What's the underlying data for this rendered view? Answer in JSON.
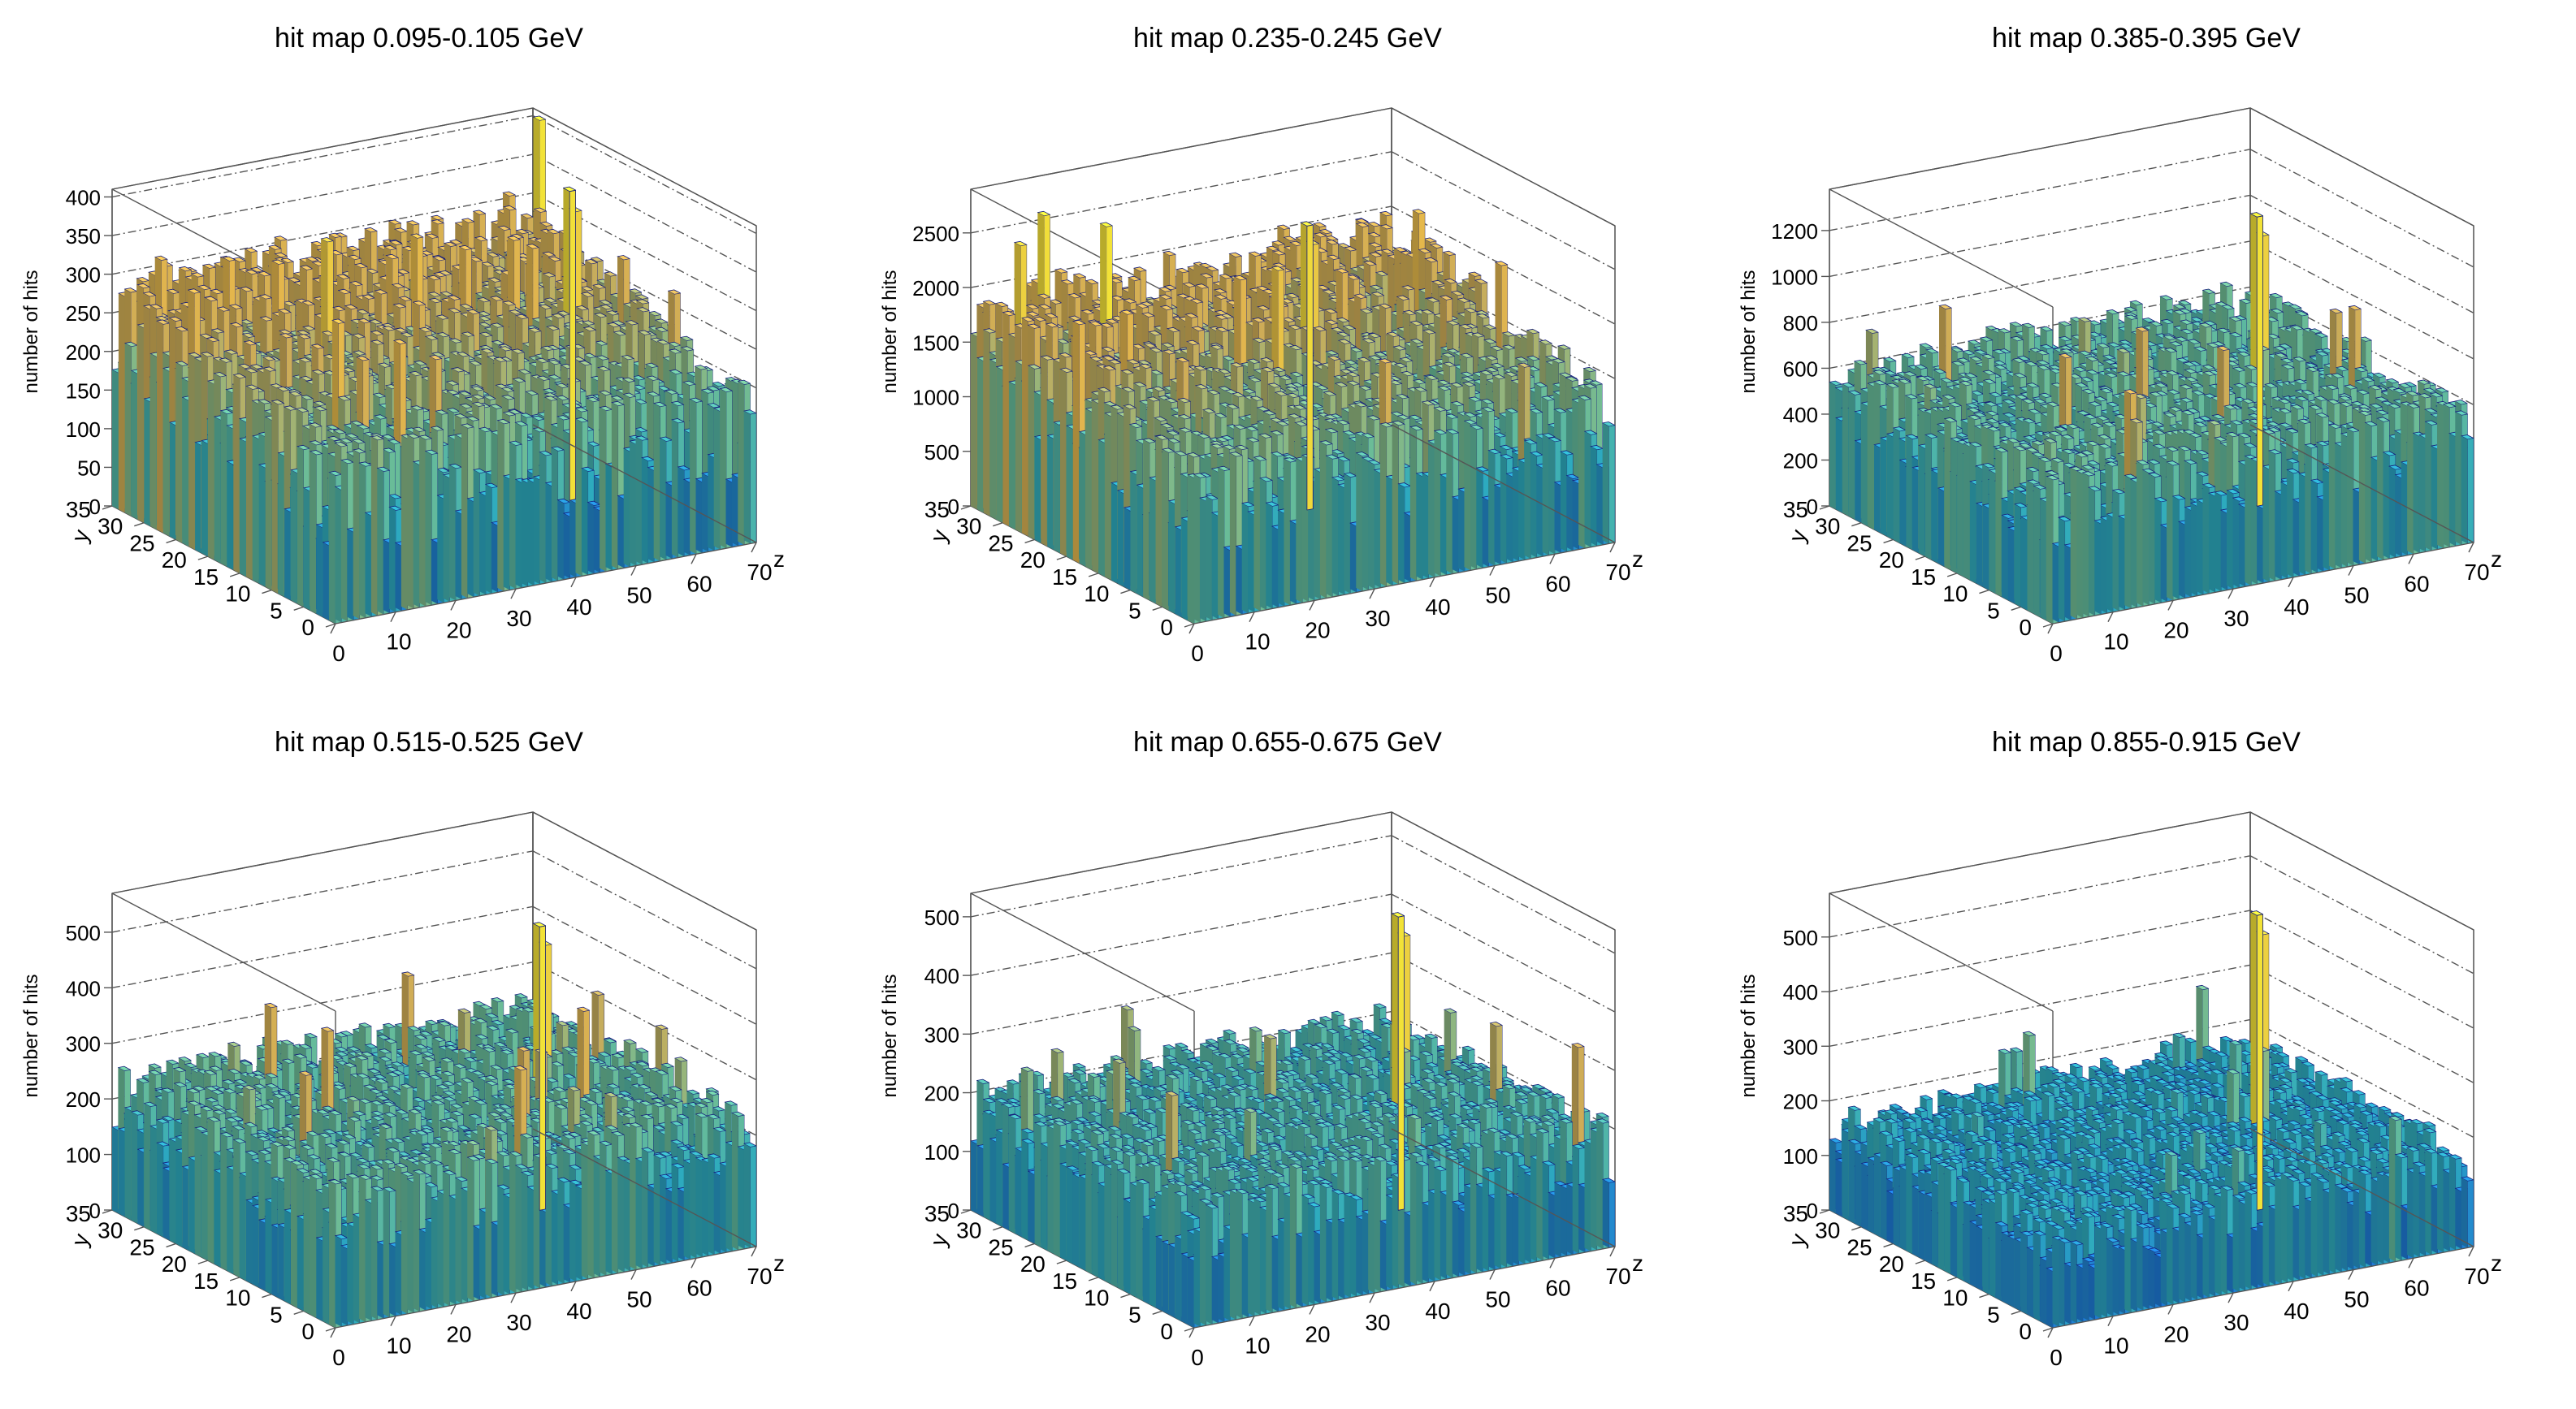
{
  "chart_data": [
    {
      "type": "lego3d",
      "title": "hit map 0.095-0.105 GeV",
      "xlabel": "z",
      "ylabel": "y",
      "zlabel": "number of hits",
      "xlim": [
        0,
        70
      ],
      "ylim": [
        0,
        35
      ],
      "zlim": [
        0,
        410
      ],
      "xticks": [
        0,
        10,
        20,
        30,
        40,
        50,
        60,
        70
      ],
      "yticks": [
        0,
        5,
        10,
        15,
        20,
        25,
        30,
        35
      ],
      "zticks": [
        0,
        50,
        100,
        150,
        200,
        250,
        300,
        350,
        400
      ],
      "bins": {
        "nx": 70,
        "ny": 35,
        "typical_max": 260,
        "background_level": 200,
        "gradient": "increasing with y",
        "hotspot": {
          "z": 57,
          "y": 17,
          "value": 400
        }
      }
    },
    {
      "type": "lego3d",
      "title": "hit map 0.235-0.245 GeV",
      "xlabel": "z",
      "ylabel": "y",
      "zlabel": "number of hits",
      "xlim": [
        0,
        70
      ],
      "ylim": [
        0,
        35
      ],
      "zlim": [
        0,
        2900
      ],
      "xticks": [
        0,
        10,
        20,
        30,
        40,
        50,
        60,
        70
      ],
      "yticks": [
        0,
        5,
        10,
        15,
        20,
        25,
        30,
        35
      ],
      "zticks": [
        0,
        500,
        1000,
        1500,
        2000,
        2500
      ],
      "bins": {
        "nx": 70,
        "ny": 35,
        "typical_max": 1800,
        "background_level": 1300,
        "gradient": "increasing with y",
        "hotspot": {
          "z": 40,
          "y": 20,
          "value": 2600
        }
      }
    },
    {
      "type": "lego3d",
      "title": "hit map 0.385-0.395 GeV",
      "xlabel": "z",
      "ylabel": "y",
      "zlabel": "number of hits",
      "xlim": [
        0,
        70
      ],
      "ylim": [
        0,
        35
      ],
      "zlim": [
        0,
        1380
      ],
      "xticks": [
        0,
        10,
        20,
        30,
        40,
        50,
        60,
        70
      ],
      "yticks": [
        0,
        5,
        10,
        15,
        20,
        25,
        30,
        35
      ],
      "zticks": [
        0,
        200,
        400,
        600,
        800,
        1000,
        1200
      ],
      "bins": {
        "nx": 70,
        "ny": 35,
        "typical_max": 620,
        "background_level": 480,
        "gradient": "flat",
        "hotspot": {
          "z": 52,
          "y": 17,
          "value": 1260
        }
      }
    },
    {
      "type": "lego3d",
      "title": "hit map 0.515-0.525 GeV",
      "xlabel": "z",
      "ylabel": "y",
      "zlabel": "number of hits",
      "xlim": [
        0,
        70
      ],
      "ylim": [
        0,
        35
      ],
      "zlim": [
        0,
        570
      ],
      "xticks": [
        0,
        10,
        20,
        30,
        40,
        50,
        60,
        70
      ],
      "yticks": [
        0,
        5,
        10,
        15,
        20,
        25,
        30,
        35
      ],
      "zticks": [
        0,
        100,
        200,
        300,
        400,
        500
      ],
      "bins": {
        "nx": 70,
        "ny": 35,
        "typical_max": 250,
        "background_level": 190,
        "gradient": "flat",
        "hotspot": {
          "z": 52,
          "y": 17,
          "value": 510
        }
      }
    },
    {
      "type": "lego3d",
      "title": "hit map 0.655-0.675 GeV",
      "xlabel": "z",
      "ylabel": "y",
      "zlabel": "number of hits",
      "xlim": [
        0,
        70
      ],
      "ylim": [
        0,
        35
      ],
      "zlim": [
        0,
        540
      ],
      "xticks": [
        0,
        10,
        20,
        30,
        40,
        50,
        60,
        70
      ],
      "yticks": [
        0,
        5,
        10,
        15,
        20,
        25,
        30,
        35
      ],
      "zticks": [
        0,
        100,
        200,
        300,
        400,
        500
      ],
      "bins": {
        "nx": 70,
        "ny": 35,
        "typical_max": 215,
        "background_level": 165,
        "gradient": "flat",
        "hotspot": {
          "z": 52,
          "y": 17,
          "value": 500
        }
      }
    },
    {
      "type": "lego3d",
      "title": "hit map 0.855-0.915 GeV",
      "xlabel": "z",
      "ylabel": "y",
      "zlabel": "number of hits",
      "xlim": [
        0,
        70
      ],
      "ylim": [
        0,
        35
      ],
      "zlim": [
        0,
        580
      ],
      "xticks": [
        0,
        10,
        20,
        30,
        40,
        50,
        60,
        70
      ],
      "yticks": [
        0,
        5,
        10,
        15,
        20,
        25,
        30,
        35
      ],
      "zticks": [
        0,
        100,
        200,
        300,
        400,
        500
      ],
      "bins": {
        "nx": 70,
        "ny": 35,
        "typical_max": 185,
        "background_level": 140,
        "gradient": "flat",
        "hotspot": {
          "z": 52,
          "y": 17,
          "value": 540
        }
      }
    }
  ],
  "palette": [
    "#1a3fd6",
    "#1f7fe0",
    "#30b4c8",
    "#6fc6a0",
    "#d8b55c",
    "#f0c050",
    "#ffee3a"
  ],
  "bar_outline_color": "#141c7a"
}
